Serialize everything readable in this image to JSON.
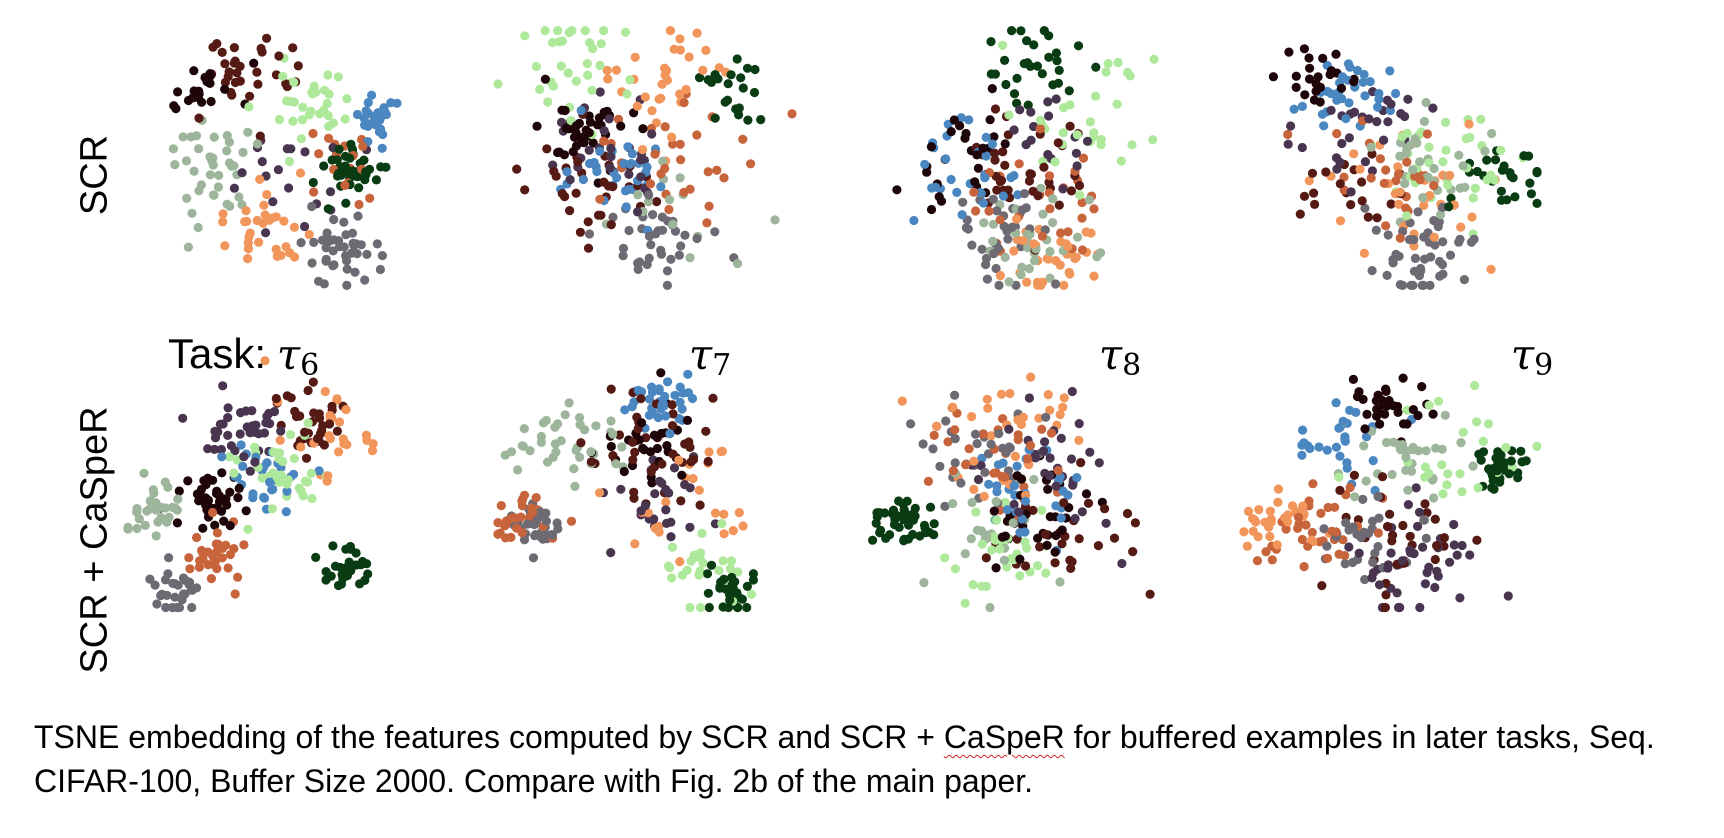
{
  "figure": {
    "row_labels": [
      "SCR",
      "SCR + CaSpeR"
    ],
    "task_prefix": "Task:",
    "task_labels": [
      {
        "symbol": "τ",
        "index": "6"
      },
      {
        "symbol": "τ",
        "index": "7"
      },
      {
        "symbol": "τ",
        "index": "8"
      },
      {
        "symbol": "τ",
        "index": "9"
      }
    ],
    "caption": {
      "part1": "TSNE embedding of the features computed by SCR and SCR + ",
      "underlined": "CaSpeR",
      "part2": " for buffered examples in later tasks, Seq. CIFAR-100, Buffer Size 2000. Compare with Fig. 2b of the main paper."
    }
  },
  "chart_data": {
    "type": "scatter",
    "layout": "grid 2 rows x 4 columns",
    "axes_visible": false,
    "grid": false,
    "legend": "none",
    "class_colors": [
      "#1e0509",
      "#4a3550",
      "#6e6a73",
      "#9db59a",
      "#aee89a",
      "#4a86c0",
      "#f2955a",
      "#c8643b",
      "#551a14",
      "#0a3c14"
    ],
    "panels": [
      {
        "row": "SCR",
        "task": "τ6",
        "n_points": 300,
        "seed": 11,
        "clusters": [
          [
            0.22,
            0.25,
            0.06
          ],
          [
            0.55,
            0.55,
            0.1
          ],
          [
            0.75,
            0.88,
            0.07
          ],
          [
            0.3,
            0.55,
            0.1
          ],
          [
            0.62,
            0.3,
            0.08
          ],
          [
            0.85,
            0.35,
            0.04
          ],
          [
            0.45,
            0.78,
            0.09
          ],
          [
            0.72,
            0.52,
            0.08
          ],
          [
            0.4,
            0.2,
            0.1
          ],
          [
            0.78,
            0.55,
            0.05
          ]
        ]
      },
      {
        "row": "SCR",
        "task": "τ7",
        "n_points": 300,
        "seed": 23,
        "clusters": [
          [
            0.3,
            0.4,
            0.08
          ],
          [
            0.4,
            0.5,
            0.1
          ],
          [
            0.55,
            0.8,
            0.08
          ],
          [
            0.62,
            0.7,
            0.1
          ],
          [
            0.25,
            0.15,
            0.12
          ],
          [
            0.42,
            0.55,
            0.08
          ],
          [
            0.55,
            0.2,
            0.12
          ],
          [
            0.6,
            0.5,
            0.12
          ],
          [
            0.35,
            0.6,
            0.1
          ],
          [
            0.78,
            0.2,
            0.07
          ]
        ]
      },
      {
        "row": "SCR",
        "task": "τ8",
        "n_points": 300,
        "seed": 37,
        "clusters": [
          [
            0.3,
            0.5,
            0.1
          ],
          [
            0.55,
            0.45,
            0.1
          ],
          [
            0.45,
            0.8,
            0.08
          ],
          [
            0.55,
            0.8,
            0.1
          ],
          [
            0.7,
            0.4,
            0.14
          ],
          [
            0.3,
            0.55,
            0.1
          ],
          [
            0.6,
            0.85,
            0.08
          ],
          [
            0.6,
            0.65,
            0.12
          ],
          [
            0.5,
            0.55,
            0.1
          ],
          [
            0.55,
            0.12,
            0.1
          ]
        ]
      },
      {
        "row": "SCR",
        "task": "τ9",
        "n_points": 300,
        "seed": 53,
        "clusters": [
          [
            0.25,
            0.2,
            0.06
          ],
          [
            0.4,
            0.4,
            0.12
          ],
          [
            0.6,
            0.85,
            0.1
          ],
          [
            0.62,
            0.55,
            0.1
          ],
          [
            0.7,
            0.5,
            0.12
          ],
          [
            0.35,
            0.25,
            0.08
          ],
          [
            0.55,
            0.65,
            0.12
          ],
          [
            0.5,
            0.55,
            0.12
          ],
          [
            0.4,
            0.6,
            0.1
          ],
          [
            0.9,
            0.55,
            0.08
          ]
        ]
      },
      {
        "row": "SCR + CaSpeR",
        "task": "τ6",
        "n_points": 320,
        "seed": 67,
        "clusters": [
          [
            0.28,
            0.57,
            0.05
          ],
          [
            0.4,
            0.3,
            0.1
          ],
          [
            0.18,
            0.92,
            0.04
          ],
          [
            0.1,
            0.6,
            0.05
          ],
          [
            0.55,
            0.45,
            0.1
          ],
          [
            0.48,
            0.47,
            0.07
          ],
          [
            0.65,
            0.3,
            0.1
          ],
          [
            0.3,
            0.8,
            0.06
          ],
          [
            0.62,
            0.25,
            0.06
          ],
          [
            0.75,
            0.82,
            0.04
          ]
        ]
      },
      {
        "row": "SCR + CaSpeR",
        "task": "τ7",
        "n_points": 320,
        "seed": 79,
        "clusters": [
          [
            0.5,
            0.35,
            0.09
          ],
          [
            0.55,
            0.55,
            0.1
          ],
          [
            0.13,
            0.68,
            0.04
          ],
          [
            0.22,
            0.35,
            0.1
          ],
          [
            0.7,
            0.85,
            0.08
          ],
          [
            0.55,
            0.2,
            0.06
          ],
          [
            0.6,
            0.55,
            0.12
          ],
          [
            0.1,
            0.65,
            0.05
          ],
          [
            0.55,
            0.35,
            0.1
          ],
          [
            0.79,
            0.92,
            0.04
          ]
        ]
      },
      {
        "row": "SCR + CaSpeR",
        "task": "τ8",
        "n_points": 320,
        "seed": 97,
        "clusters": [
          [
            0.55,
            0.6,
            0.1
          ],
          [
            0.6,
            0.45,
            0.12
          ],
          [
            0.35,
            0.4,
            0.1
          ],
          [
            0.4,
            0.7,
            0.12
          ],
          [
            0.45,
            0.75,
            0.1
          ],
          [
            0.55,
            0.55,
            0.1
          ],
          [
            0.5,
            0.3,
            0.15
          ],
          [
            0.4,
            0.4,
            0.14
          ],
          [
            0.65,
            0.7,
            0.12
          ],
          [
            0.12,
            0.65,
            0.05
          ]
        ]
      },
      {
        "row": "SCR + CaSpeR",
        "task": "τ9",
        "n_points": 320,
        "seed": 113,
        "clusters": [
          [
            0.5,
            0.2,
            0.07
          ],
          [
            0.55,
            0.8,
            0.12
          ],
          [
            0.4,
            0.7,
            0.1
          ],
          [
            0.55,
            0.4,
            0.1
          ],
          [
            0.7,
            0.4,
            0.15
          ],
          [
            0.35,
            0.35,
            0.08
          ],
          [
            0.12,
            0.65,
            0.07
          ],
          [
            0.25,
            0.7,
            0.09
          ],
          [
            0.5,
            0.7,
            0.12
          ],
          [
            0.88,
            0.45,
            0.04
          ]
        ]
      }
    ]
  }
}
